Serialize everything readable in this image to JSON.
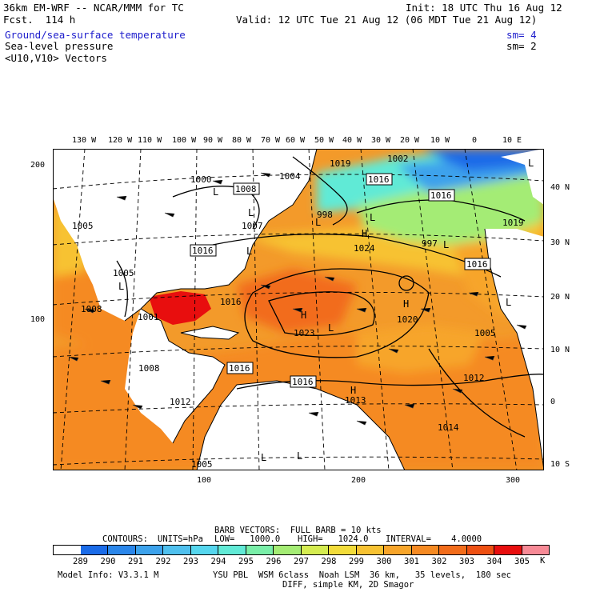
{
  "header": {
    "model_title": "36km EM-WRF -- NCAR/MMM for TC",
    "forecast": "Fcst.  114 h",
    "init": "Init: 18 UTC Thu 16 Aug 12",
    "valid": "Valid: 12 UTC Tue 21 Aug 12 (06 MDT Tue 21 Aug 12)"
  },
  "fields": [
    {
      "label": "Ground/sea-surface temperature",
      "sm": "sm= 4"
    },
    {
      "label": "Sea-level pressure",
      "sm": "sm= 2"
    },
    {
      "label": "<U10,V10> Vectors"
    }
  ],
  "top_lon_labels": [
    "130 W",
    "120 W",
    "110 W",
    "100 W",
    "90 W",
    "80 W",
    "70 W",
    "60 W",
    "50 W",
    "40 W",
    "30 W",
    "20 W",
    "10 W",
    "0",
    "10 E"
  ],
  "right_lat_labels": [
    "40 N",
    "30 N",
    "20 N",
    "10 N",
    "0",
    "10 S"
  ],
  "left_grid_labels": [
    "200",
    "100"
  ],
  "bottom_grid_labels": [
    "100",
    "200",
    "300"
  ],
  "pressure_labels": [
    {
      "text": "1000",
      "boxed": false
    },
    {
      "text": "1004",
      "boxed": false
    },
    {
      "text": "1008",
      "boxed": true
    },
    {
      "text": "1019",
      "boxed": false
    },
    {
      "text": "1002",
      "boxed": false
    },
    {
      "text": "1016",
      "boxed": true
    },
    {
      "text": "1016",
      "boxed": true
    },
    {
      "text": "1005",
      "boxed": false
    },
    {
      "text": "1007",
      "boxed": false
    },
    {
      "text": "998",
      "boxed": false
    },
    {
      "text": "1024",
      "boxed": false
    },
    {
      "text": "997",
      "boxed": false
    },
    {
      "text": "1016",
      "boxed": true
    },
    {
      "text": "1019",
      "boxed": false
    },
    {
      "text": "1016",
      "boxed": true
    },
    {
      "text": "1005",
      "boxed": false
    },
    {
      "text": "1008",
      "boxed": false
    },
    {
      "text": "1016",
      "boxed": false
    },
    {
      "text": "1001",
      "boxed": false
    },
    {
      "text": "1023",
      "boxed": false
    },
    {
      "text": "1020",
      "boxed": false
    },
    {
      "text": "1005",
      "boxed": false
    },
    {
      "text": "1016",
      "boxed": true
    },
    {
      "text": "1008",
      "boxed": false
    },
    {
      "text": "1016",
      "boxed": true
    },
    {
      "text": "1013",
      "boxed": false
    },
    {
      "text": "1014",
      "boxed": false
    },
    {
      "text": "1012",
      "boxed": false
    },
    {
      "text": "1005",
      "boxed": false
    },
    {
      "text": "1012",
      "boxed": false
    }
  ],
  "pressure_centers": [
    "L",
    "L",
    "L",
    "L",
    "L",
    "L",
    "H",
    "H",
    "L",
    "H",
    "L",
    "L",
    "L",
    "H",
    "L",
    "L"
  ],
  "barb_info": "BARB VECTORS:  FULL BARB = 10 kts",
  "contours": {
    "label": "CONTOURS:",
    "units": "UNITS=hPa",
    "low": "LOW=   1000.0",
    "high": "HIGH=   1024.0",
    "interval": "INTERVAL=    4.0000"
  },
  "colorbar": {
    "values": [
      "289",
      "290",
      "291",
      "292",
      "293",
      "294",
      "295",
      "296",
      "297",
      "298",
      "299",
      "300",
      "301",
      "302",
      "303",
      "304",
      "305"
    ],
    "unit": "K",
    "colors": [
      "#ffffff",
      "#1a6be8",
      "#2a86ea",
      "#3ca2ec",
      "#4fc0ee",
      "#55d6ee",
      "#61ead6",
      "#79eea8",
      "#a4ec74",
      "#d5ec50",
      "#f2dc3a",
      "#f7c232",
      "#f7a52a",
      "#f58a22",
      "#f26c1a",
      "#ee5012",
      "#e80e0e",
      "#f78a96"
    ]
  },
  "footer": {
    "model_info": "Model Info: V3.3.1 M",
    "physics": "YSU PBL  WSM 6class  Noah LSM  36 km,   35 levels,  180 sec",
    "diff": "DIFF, simple KM, 2D Smagor"
  }
}
